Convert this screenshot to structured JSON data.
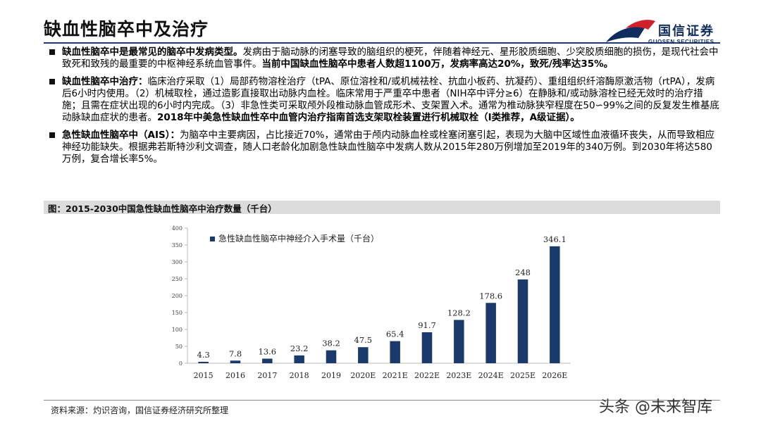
{
  "page": {
    "title": "缺血性脑卒中及治疗",
    "logo_cn": "国信证券",
    "logo_en": "GUOSEN SECURITIES"
  },
  "bullets": [
    {
      "head": "缺血性脑卒中是最常见的脑卒中发病类型。",
      "body": "发病由于脑动脉的闭塞导致的脑组织的梗死，伴随着神经元、星形胶质细胞、少突胶质细胞的损伤，是现代社会中致死和致残的最重要的中枢神经系统血管事件。",
      "tail": "当前中国缺血性脑卒中患者人数超1100万，发病率高达20%，致死/残率达35%。"
    },
    {
      "head": "缺血性脑卒中治疗：",
      "body": "临床治疗采取（1）局部药物溶栓治疗（tPA、原位溶栓和/或机械祛栓、抗血小板药、抗凝药）、重组组织纤溶酶原激活物（rtPA），发病后6小时内使用。（2）机械取栓，通过造影直接取出动脉内血栓。临床常用于严重卒中患者（NIH卒中评分≥6）在静脉和/或动脉溶栓已经无效时的治疗措施；且需在症状出现的6小时内完成。（3）非急性类可采取颅外段椎动脉血管成形术、支架置入术。通常为椎动脉狭窄程度在50∽99%之间的反复发生椎基底动脉缺血症状的患者。",
      "tail": "2018年中美急性缺血性卒中血管内治疗指南首选支架取栓装置进行机械取栓（I类推荐，A级证据）。"
    },
    {
      "head": "急性缺血性脑卒中（AIS）：",
      "body": "为脑卒中主要病因，占比接近70%，通常由于颅内动脉血栓或栓塞闭塞引起，表现为大脑中区域性血液循环丧失，从而导致相应神经功能缺失。根据弗若斯特沙利文调查，随人口老龄化加剧急性缺血性脑卒中发病人数从2015年280万例增加至2019年的340万例。到2030年将达580万例，复合增长率5%。",
      "tail": ""
    }
  ],
  "figure": {
    "caption": "图：2015-2030中国急性缺血性脑卒中治疗数量（千台）"
  },
  "chart_data": {
    "type": "bar",
    "categories": [
      "2015",
      "2016",
      "2017",
      "2018",
      "2019",
      "2020E",
      "2021E",
      "2022E",
      "2023E",
      "2024E",
      "2025E",
      "2026E"
    ],
    "series": [
      {
        "name": "急性缺血性脑卒中神经介入手术量（千台）",
        "values": [
          4.3,
          7.8,
          13.6,
          23.2,
          38.2,
          47.5,
          65.4,
          91.7,
          128.2,
          178.6,
          248,
          346.1
        ]
      }
    ],
    "value_labels": [
      "4.3",
      "7.8",
      "13.6",
      "23.2",
      "38.2",
      "47.5",
      "65.4",
      "91.7",
      "128.2",
      "178.6",
      "248",
      "346.1"
    ],
    "ylim": [
      0,
      400
    ],
    "yticks": [
      "0",
      "50",
      "100",
      "150",
      "200",
      "250",
      "300",
      "350",
      "400"
    ],
    "legend_position": "top-left",
    "grid": false,
    "bar_color": "#1a3a6c"
  },
  "footer": {
    "source": "资料来源：灼识咨询，国信证券经济研究所整理",
    "watermark": "头条 @未来智库"
  }
}
